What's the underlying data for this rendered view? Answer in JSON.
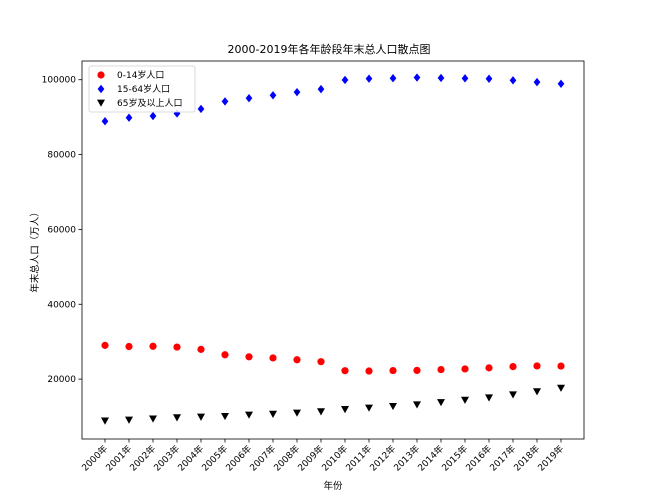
{
  "chart_data": {
    "type": "scatter",
    "title": "2000-2019年各年龄段年末总人口散点图",
    "xlabel": "年份",
    "ylabel": "年末总人口（万人）",
    "categories": [
      "2000年",
      "2001年",
      "2002年",
      "2003年",
      "2004年",
      "2005年",
      "2006年",
      "2007年",
      "2008年",
      "2009年",
      "2010年",
      "2011年",
      "2012年",
      "2013年",
      "2014年",
      "2015年",
      "2016年",
      "2017年",
      "2018年",
      "2019年"
    ],
    "ylim": [
      4000,
      105000
    ],
    "yticks": [
      20000,
      40000,
      60000,
      80000,
      100000
    ],
    "yticklabels": [
      "20000",
      "40000",
      "60000",
      "80000",
      "100000"
    ],
    "grid": false,
    "legend_position": "top-left",
    "series": [
      {
        "name": "0-14岁人口",
        "color": "#ff0000",
        "marker": "circle",
        "values": [
          29012,
          28716,
          28774,
          28559,
          27947,
          26504,
          25961,
          25660,
          25166,
          24659,
          22259,
          22164,
          22287,
          22329,
          22558,
          22715,
          23008,
          23348,
          23523,
          23492
        ]
      },
      {
        "name": "15-64岁人口",
        "color": "#0000ff",
        "marker": "diamond",
        "values": [
          88910,
          89849,
          90302,
          90976,
          92184,
          94197,
          95068,
          95833,
          96680,
          97484,
          99938,
          100283,
          100403,
          100582,
          100469,
          100361,
          100260,
          99829,
          99357,
          98910
        ]
      },
      {
        "name": "65岁及以上人口",
        "color": "#000000",
        "marker": "triangle-down",
        "values": [
          8821,
          9062,
          9377,
          9692,
          9857,
          10055,
          10419,
          10636,
          10956,
          11307,
          11894,
          12288,
          12714,
          13161,
          13755,
          14386,
          15003,
          15831,
          16658,
          17603
        ]
      }
    ]
  }
}
